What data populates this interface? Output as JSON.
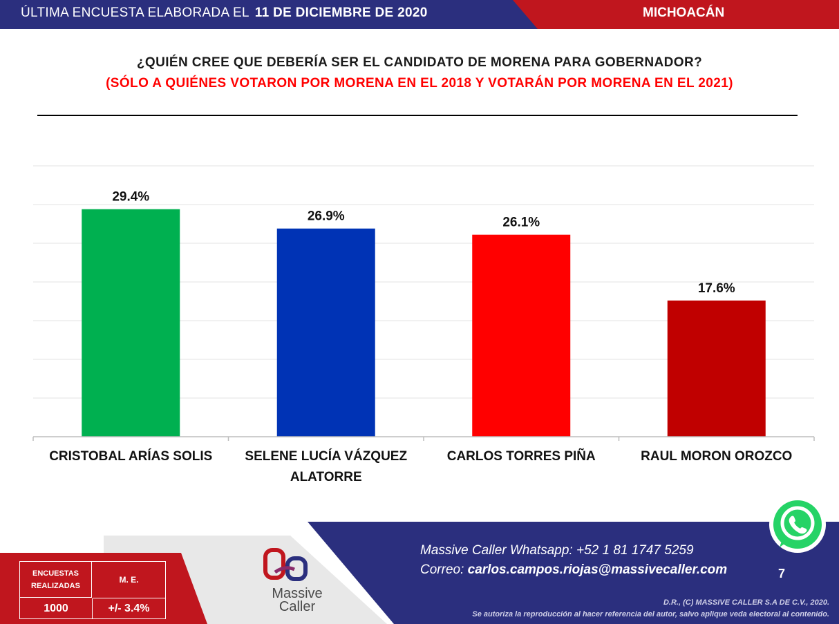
{
  "header": {
    "left_text": "ÚLTIMA ENCUESTA ELABORADA EL",
    "date": "11 DE DICIEMBRE DE 2020",
    "region": "MICHOACÁN",
    "colors": {
      "navy": "#2b2f7e",
      "red": "#c0161e"
    }
  },
  "chart_data": {
    "type": "bar",
    "title": "¿QUIÉN CREE QUE DEBERÍA SER EL CANDIDATO DE MORENA PARA GOBERNADOR?",
    "subtitle": "(SÓLO A QUIÉNES VOTARON POR MORENA EN EL 2018 Y VOTARÁN POR MORENA EN EL 2021)",
    "categories": [
      "CRISTOBAL ARÍAS SOLIS",
      "SELENE LUCÍA VÁZQUEZ ALATORRE",
      "CARLOS TORRES PIÑA",
      "RAUL MORON OROZCO"
    ],
    "values": [
      29.4,
      26.9,
      26.1,
      17.6
    ],
    "data_labels": [
      "29.4%",
      "26.9%",
      "26.1%",
      "17.6%"
    ],
    "colors": [
      "#00b050",
      "#0033b5",
      "#ff0000",
      "#c00000"
    ],
    "ylim": [
      0,
      35
    ],
    "grid": true,
    "xlabel": "",
    "ylabel": ""
  },
  "footer": {
    "whatsapp_line": "Massive Caller Whatsapp: +52 1 81 1747 5259",
    "email_label": "Correo: ",
    "email": "carlos.campos.riojas@massivecaller.com",
    "page_number": "7",
    "legal_line1": "D.R., (C) MASSIVE CALLER S.A DE C.V., 2020.",
    "legal_line2": "Se autoriza la reproducción al hacer referencia del autor, salvo aplique veda electoral al contenido.",
    "brand_line1": "Massive",
    "brand_line2": "Caller",
    "stats": {
      "surveys_label": "ENCUESTAS REALIZADAS",
      "me_label": "M. E.",
      "surveys_value": "1000",
      "me_value": "+/- 3.4%"
    }
  }
}
